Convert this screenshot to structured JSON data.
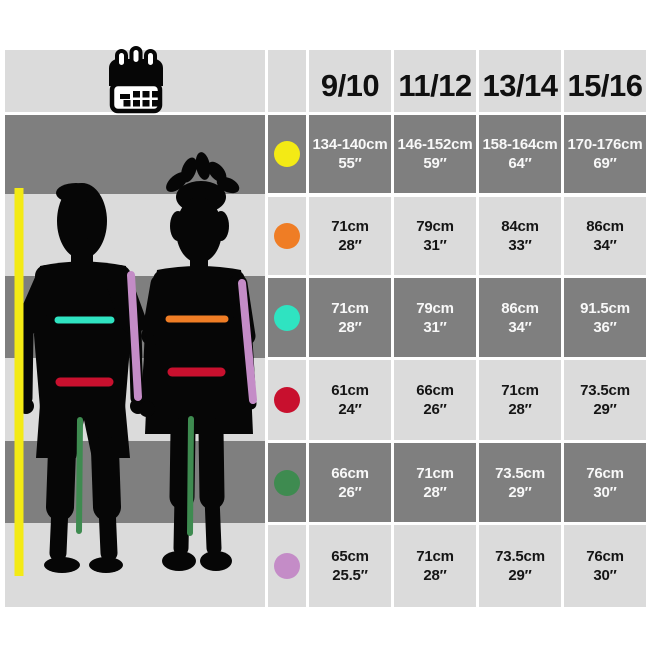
{
  "header": {
    "icon": "calendar-icon",
    "columns": [
      "9/10",
      "11/12",
      "13/14",
      "15/16"
    ]
  },
  "rows": [
    {
      "name": "yellow",
      "dot_color": "#F3EA15",
      "shade": "dark",
      "cells": [
        {
          "cm": "134-140cm",
          "inches": "55″"
        },
        {
          "cm": "146-152cm",
          "inches": "59″"
        },
        {
          "cm": "158-164cm",
          "inches": "64″"
        },
        {
          "cm": "170-176cm",
          "inches": "69″"
        }
      ]
    },
    {
      "name": "orange",
      "dot_color": "#EF7D25",
      "shade": "light",
      "cells": [
        {
          "cm": "71cm",
          "inches": "28″"
        },
        {
          "cm": "79cm",
          "inches": "31″"
        },
        {
          "cm": "84cm",
          "inches": "33″"
        },
        {
          "cm": "86cm",
          "inches": "34″"
        }
      ]
    },
    {
      "name": "teal",
      "dot_color": "#2FE3C1",
      "shade": "dark",
      "cells": [
        {
          "cm": "71cm",
          "inches": "28″"
        },
        {
          "cm": "79cm",
          "inches": "31″"
        },
        {
          "cm": "86cm",
          "inches": "34″"
        },
        {
          "cm": "91.5cm",
          "inches": "36″"
        }
      ]
    },
    {
      "name": "red",
      "dot_color": "#C8102E",
      "shade": "light",
      "cells": [
        {
          "cm": "61cm",
          "inches": "24″"
        },
        {
          "cm": "66cm",
          "inches": "26″"
        },
        {
          "cm": "71cm",
          "inches": "28″"
        },
        {
          "cm": "73.5cm",
          "inches": "29″"
        }
      ]
    },
    {
      "name": "green",
      "dot_color": "#3E8B50",
      "shade": "dark",
      "cells": [
        {
          "cm": "66cm",
          "inches": "26″"
        },
        {
          "cm": "71cm",
          "inches": "28″"
        },
        {
          "cm": "73.5cm",
          "inches": "29″"
        },
        {
          "cm": "76cm",
          "inches": "30″"
        }
      ]
    },
    {
      "name": "purple",
      "dot_color": "#C48CC7",
      "shade": "light",
      "cells": [
        {
          "cm": "65cm",
          "inches": "25.5″"
        },
        {
          "cm": "71cm",
          "inches": "28″"
        },
        {
          "cm": "73.5cm",
          "inches": "29″"
        },
        {
          "cm": "76cm",
          "inches": "30″"
        }
      ]
    }
  ],
  "palette": {
    "dark_row": "#7F7F7F",
    "light_row": "#DBDBDB",
    "background": "#FFFFFF",
    "silhouette": "#060606",
    "line_yellow": "#F3EA15",
    "line_orange": "#EF7D25",
    "line_teal": "#2FE3C1",
    "line_red": "#C8102E",
    "line_green": "#3E8B50",
    "line_purple": "#C48CC7"
  },
  "chart_data": {
    "type": "table",
    "title": "Kids size chart by age",
    "columns": [
      "9/10",
      "11/12",
      "13/14",
      "15/16"
    ],
    "rows": [
      {
        "marker_color": "#F3EA15",
        "values_cm": [
          "134-140",
          "146-152",
          "158-164",
          "170-176"
        ],
        "values_in": [
          55,
          59,
          64,
          69
        ]
      },
      {
        "marker_color": "#EF7D25",
        "values_cm": [
          71,
          79,
          84,
          86
        ],
        "values_in": [
          28,
          31,
          33,
          34
        ]
      },
      {
        "marker_color": "#2FE3C1",
        "values_cm": [
          71,
          79,
          86,
          91.5
        ],
        "values_in": [
          28,
          31,
          34,
          36
        ]
      },
      {
        "marker_color": "#C8102E",
        "values_cm": [
          61,
          66,
          71,
          73.5
        ],
        "values_in": [
          24,
          26,
          28,
          29
        ]
      },
      {
        "marker_color": "#3E8B50",
        "values_cm": [
          66,
          71,
          73.5,
          76
        ],
        "values_in": [
          26,
          28,
          29,
          30
        ]
      },
      {
        "marker_color": "#C48CC7",
        "values_cm": [
          65,
          71,
          73.5,
          76
        ],
        "values_in": [
          25.5,
          28,
          29,
          30
        ]
      }
    ]
  }
}
